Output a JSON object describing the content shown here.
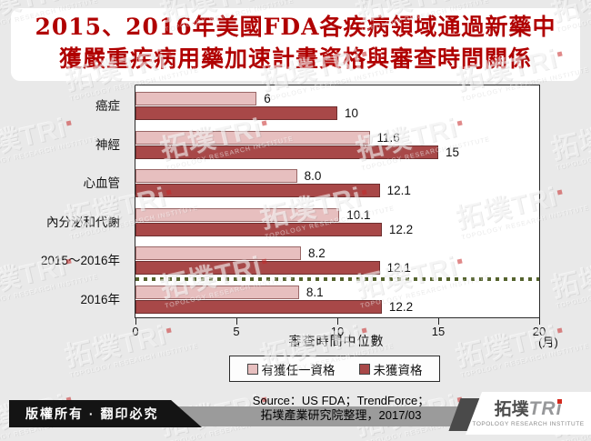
{
  "title": {
    "line1": "2015、2016年美國FDA各疾病領域通過新藥中",
    "line2": "獲嚴重疾病用藥加速計畫資格與審查時間關係"
  },
  "colors": {
    "title_red": "#b00000",
    "separator_green": "#55632e",
    "qualified_fill": "#e7bfbf",
    "qualified_border": "#9a6868",
    "unqualified_fill": "#a84848",
    "unqualified_border": "#6f2f2f"
  },
  "chart_data": {
    "type": "bar",
    "orientation": "horizontal",
    "title": "2015、2016年美國FDA各疾病領域通過新藥中獲嚴重疾病用藥加速計畫資格與審查時間關係",
    "categories": [
      "癌症",
      "神經",
      "心血管",
      "內分泌和代謝",
      "2015～2016年",
      "2016年"
    ],
    "series": [
      {
        "name": "有獲任一資格",
        "color": "#e7bfbf",
        "border": "#9a6868",
        "values": [
          6,
          11.6,
          8.0,
          10.1,
          8.2,
          8.1
        ],
        "labels": [
          "6",
          "11.6",
          "8.0",
          "10.1",
          "8.2",
          "8.1"
        ]
      },
      {
        "name": "未獲資格",
        "color": "#a84848",
        "border": "#6f2f2f",
        "values": [
          10,
          15,
          12.1,
          12.2,
          12.1,
          12.2
        ],
        "labels": [
          "10",
          "15",
          "12.1",
          "12.2",
          "12.1",
          "12.2"
        ]
      }
    ],
    "xlabel": "審查時間中位數",
    "x_unit": "(月)",
    "xlim": [
      0,
      20
    ],
    "xticks": [
      0,
      5,
      10,
      15,
      20
    ],
    "grid": false,
    "legend_position": "bottom",
    "separator_between_last_two_categories": true
  },
  "legend": {
    "item1": "有獲任一資格",
    "item2": "未獲資格"
  },
  "footer": {
    "copyright": "版權所有 · 翻印必究",
    "source_line1": "Source：US FDA；TrendForce；",
    "source_line2": "拓墣產業研究院整理，2017/03",
    "logo_cjk": "拓墣",
    "logo_tri": "TRi",
    "logo_caption": "TOPOLOGY RESEARCH INSTITUTE"
  },
  "watermark": {
    "logo_cjk": "拓墣",
    "logo_tri": "TRi",
    "caption": "TOPOLOGY RESEARCH INSTITUTE"
  }
}
